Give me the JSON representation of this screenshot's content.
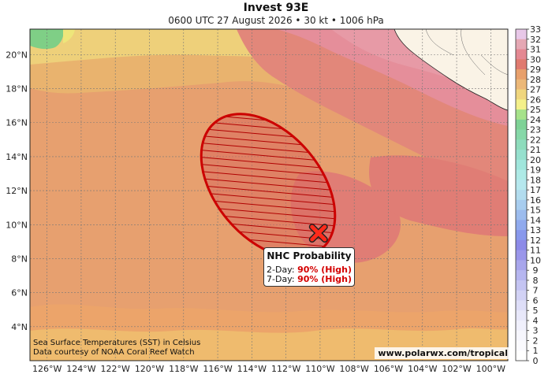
{
  "title": "Invest 93E",
  "subtitle": "0600 UTC 27 August 2026 • 30 kt • 1006 hPa",
  "map": {
    "lon_range": [
      -127,
      -99
    ],
    "lat_range": [
      2,
      21.5
    ],
    "lon_ticks": [
      "126°W",
      "124°W",
      "122°W",
      "120°W",
      "118°W",
      "116°W",
      "114°W",
      "112°W",
      "110°W",
      "108°W",
      "106°W",
      "104°W",
      "102°W",
      "100°W"
    ],
    "lat_ticks": [
      "20°N",
      "18°N",
      "16°N",
      "14°N",
      "12°N",
      "10°N",
      "8°N",
      "6°N",
      "4°N"
    ],
    "storm_center": {
      "lon": -110.1,
      "lat": 9.5
    },
    "formation_area": {
      "center_lon": -113.0,
      "center_lat": 12.0,
      "color": "#cc0000"
    }
  },
  "probability": {
    "title": "NHC Probability",
    "two_day_label": "2-Day:",
    "two_day_value": "90% (High)",
    "seven_day_label": "7-Day:",
    "seven_day_value": "90% (High)"
  },
  "colorbar": {
    "ticks": [
      "33",
      "32",
      "31",
      "30",
      "29",
      "28",
      "27",
      "26",
      "25",
      "24",
      "23",
      "22",
      "21",
      "20",
      "19",
      "18",
      "17",
      "16",
      "15",
      "14",
      "13",
      "12",
      "11",
      "10",
      "9",
      "8",
      "7",
      "6",
      "5",
      "4",
      "3",
      "2",
      "1",
      "0"
    ],
    "unit": "Celsius"
  },
  "credit": {
    "line1": "Sea Surface Temperatures (SST) in Celsius",
    "line2": "Data courtesy of NOAA Coral Reef Watch"
  },
  "website": "www.polarwx.com/tropical"
}
